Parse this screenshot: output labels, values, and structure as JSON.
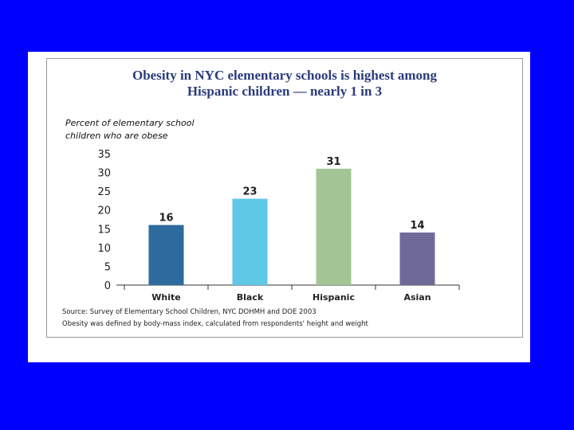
{
  "colors": {
    "background": "#0000ff",
    "title": "#2a3b7a",
    "axis": "#333333"
  },
  "chart_data": {
    "type": "bar",
    "title_lines": [
      "Obesity in NYC elementary schools is highest among",
      "Hispanic children — nearly 1 in 3"
    ],
    "ylabel_lines": [
      "Percent of elementary school",
      "children who are obese"
    ],
    "categories": [
      "White",
      "Black",
      "Hispanic",
      "Asian"
    ],
    "values": [
      16,
      23,
      31,
      14
    ],
    "bar_colors": [
      "#2d6a9e",
      "#5ec8e6",
      "#a3c596",
      "#6e6a98"
    ],
    "ylim": [
      0,
      35
    ],
    "yticks": [
      0,
      5,
      10,
      15,
      20,
      25,
      30,
      35
    ],
    "grid": false,
    "notes": [
      "Source: Survey of Elementary School Children, NYC DOHMH and DOE 2003",
      "Obesity was defined by body-mass index, calculated from respondents' height and weight"
    ]
  }
}
